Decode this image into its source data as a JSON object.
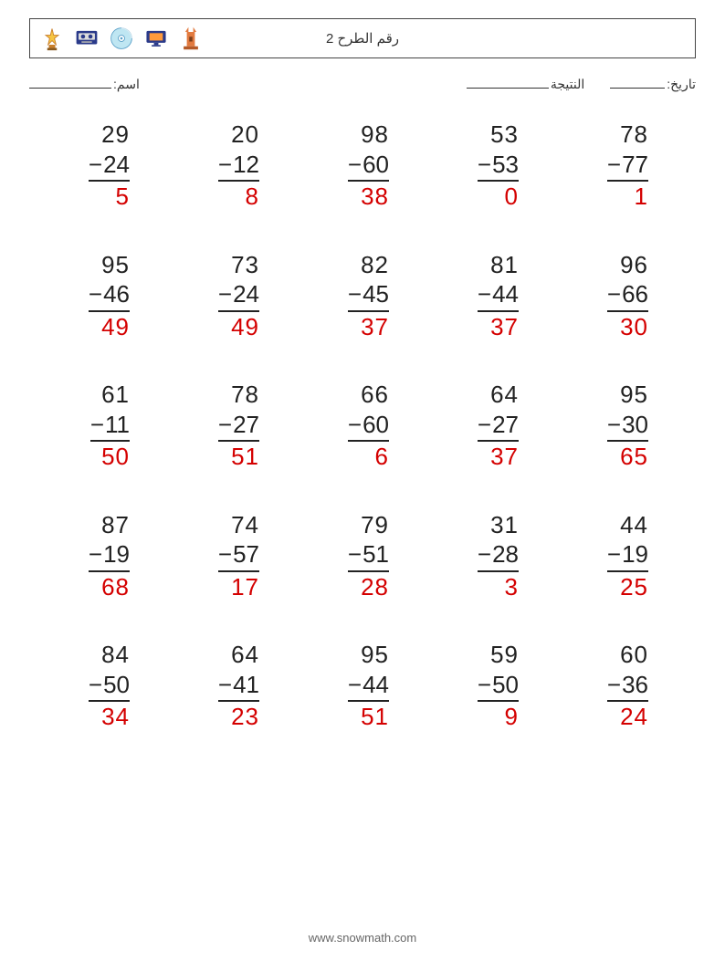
{
  "header": {
    "title": "رقم الطرح 2",
    "icons": [
      "trophy-icon",
      "cassette-icon",
      "cd-icon",
      "screen-icon",
      "tower-icon"
    ]
  },
  "meta": {
    "date_label": "تاريخ:",
    "score_label": "النتيجة",
    "name_label": "اسم:"
  },
  "styling": {
    "number_color": "#222222",
    "answer_color": "#d40000",
    "font_size_problem": 26,
    "operator": "−",
    "cols": 5,
    "rows": 5
  },
  "problems": [
    {
      "a": 29,
      "b": 24,
      "ans": 5
    },
    {
      "a": 20,
      "b": 12,
      "ans": 8
    },
    {
      "a": 98,
      "b": 60,
      "ans": 38
    },
    {
      "a": 53,
      "b": 53,
      "ans": 0
    },
    {
      "a": 78,
      "b": 77,
      "ans": 1
    },
    {
      "a": 95,
      "b": 46,
      "ans": 49
    },
    {
      "a": 73,
      "b": 24,
      "ans": 49
    },
    {
      "a": 82,
      "b": 45,
      "ans": 37
    },
    {
      "a": 81,
      "b": 44,
      "ans": 37
    },
    {
      "a": 96,
      "b": 66,
      "ans": 30
    },
    {
      "a": 61,
      "b": 11,
      "ans": 50
    },
    {
      "a": 78,
      "b": 27,
      "ans": 51
    },
    {
      "a": 66,
      "b": 60,
      "ans": 6
    },
    {
      "a": 64,
      "b": 27,
      "ans": 37
    },
    {
      "a": 95,
      "b": 30,
      "ans": 65
    },
    {
      "a": 87,
      "b": 19,
      "ans": 68
    },
    {
      "a": 74,
      "b": 57,
      "ans": 17
    },
    {
      "a": 79,
      "b": 51,
      "ans": 28
    },
    {
      "a": 31,
      "b": 28,
      "ans": 3
    },
    {
      "a": 44,
      "b": 19,
      "ans": 25
    },
    {
      "a": 84,
      "b": 50,
      "ans": 34
    },
    {
      "a": 64,
      "b": 41,
      "ans": 23
    },
    {
      "a": 95,
      "b": 44,
      "ans": 51
    },
    {
      "a": 59,
      "b": 50,
      "ans": 9
    },
    {
      "a": 60,
      "b": 36,
      "ans": 24
    }
  ],
  "footer": {
    "text": "www.snowmath.com"
  }
}
